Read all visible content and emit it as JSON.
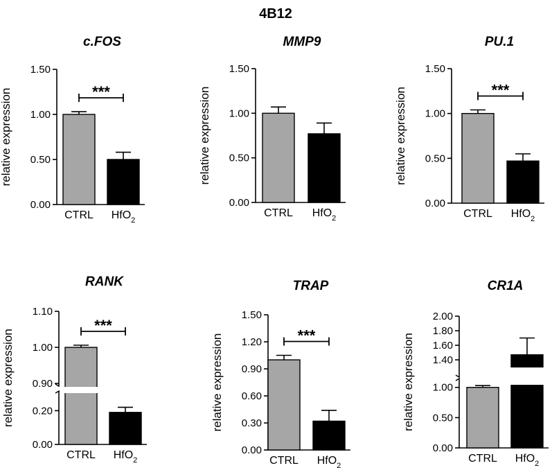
{
  "figure": {
    "title": "4B12"
  },
  "colors": {
    "ctrl": "#a6a6a6",
    "treated": "#000000",
    "axis": "#000000"
  },
  "chart_data": [
    {
      "type": "bar",
      "title": "c.FOS",
      "xlabel": "",
      "ylabel": "relative expression",
      "categories": [
        "CTRL",
        "HfO2"
      ],
      "values": [
        1.0,
        0.5
      ],
      "errors": [
        0.03,
        0.08
      ],
      "ylim": [
        0,
        1.5
      ],
      "yticks": [
        "0.00",
        "0.50",
        "1.00",
        "1.50"
      ],
      "yticks_num": [
        0,
        0.5,
        1.0,
        1.5
      ],
      "significance": "***",
      "axis_break": null
    },
    {
      "type": "bar",
      "title": "MMP9",
      "xlabel": "",
      "ylabel": "relative expression",
      "categories": [
        "CTRL",
        "HfO2"
      ],
      "values": [
        1.0,
        0.77
      ],
      "errors": [
        0.07,
        0.12
      ],
      "ylim": [
        0,
        1.5
      ],
      "yticks": [
        "0.00",
        "0.50",
        "1.00",
        "1.50"
      ],
      "yticks_num": [
        0,
        0.5,
        1.0,
        1.5
      ],
      "significance": null,
      "axis_break": null
    },
    {
      "type": "bar",
      "title": "PU.1",
      "xlabel": "",
      "ylabel": "relative expression",
      "categories": [
        "CTRL",
        "HfO2"
      ],
      "values": [
        1.0,
        0.47
      ],
      "errors": [
        0.04,
        0.08
      ],
      "ylim": [
        0,
        1.5
      ],
      "yticks": [
        "0.00",
        "0.50",
        "1.00",
        "1.50"
      ],
      "yticks_num": [
        0,
        0.5,
        1.0,
        1.5
      ],
      "significance": "***",
      "axis_break": null
    },
    {
      "type": "bar",
      "title": "RANK",
      "xlabel": "",
      "ylabel": "relative expression",
      "categories": [
        "CTRL",
        "HfO2"
      ],
      "values": [
        1.0,
        0.19
      ],
      "errors": [
        0.006,
        0.03
      ],
      "ylim": [
        0,
        1.1
      ],
      "yticks": [
        "0.00",
        "0.20",
        "0.90",
        "1.00",
        "1.10"
      ],
      "yticks_num": [
        0,
        0.2,
        0.9,
        1.0,
        1.1
      ],
      "significance": "***",
      "axis_break": [
        0.3,
        0.9
      ]
    },
    {
      "type": "bar",
      "title": "TRAP",
      "xlabel": "",
      "ylabel": "relative expression",
      "categories": [
        "CTRL",
        "HfO2"
      ],
      "values": [
        1.0,
        0.32
      ],
      "errors": [
        0.05,
        0.12
      ],
      "ylim": [
        0,
        1.5
      ],
      "yticks": [
        "0.00",
        "0.30",
        "0.60",
        "0.90",
        "1.20",
        "1.50"
      ],
      "yticks_num": [
        0,
        0.3,
        0.6,
        0.9,
        1.2,
        1.5
      ],
      "significance": "***",
      "axis_break": null
    },
    {
      "type": "bar",
      "title": "CR1A",
      "xlabel": "",
      "ylabel": "relative expression",
      "categories": [
        "CTRL",
        "HfO2"
      ],
      "values": [
        1.0,
        1.47
      ],
      "errors": [
        0.03,
        0.23
      ],
      "ylim": [
        0,
        2.0
      ],
      "yticks": [
        "0.00",
        "0.50",
        "1.00",
        "1.40",
        "1.60",
        "1.80",
        "2.00"
      ],
      "yticks_num": [
        0,
        0.5,
        1.0,
        1.4,
        1.6,
        1.8,
        2.0
      ],
      "significance": null,
      "axis_break": [
        1.1,
        1.2
      ]
    }
  ]
}
